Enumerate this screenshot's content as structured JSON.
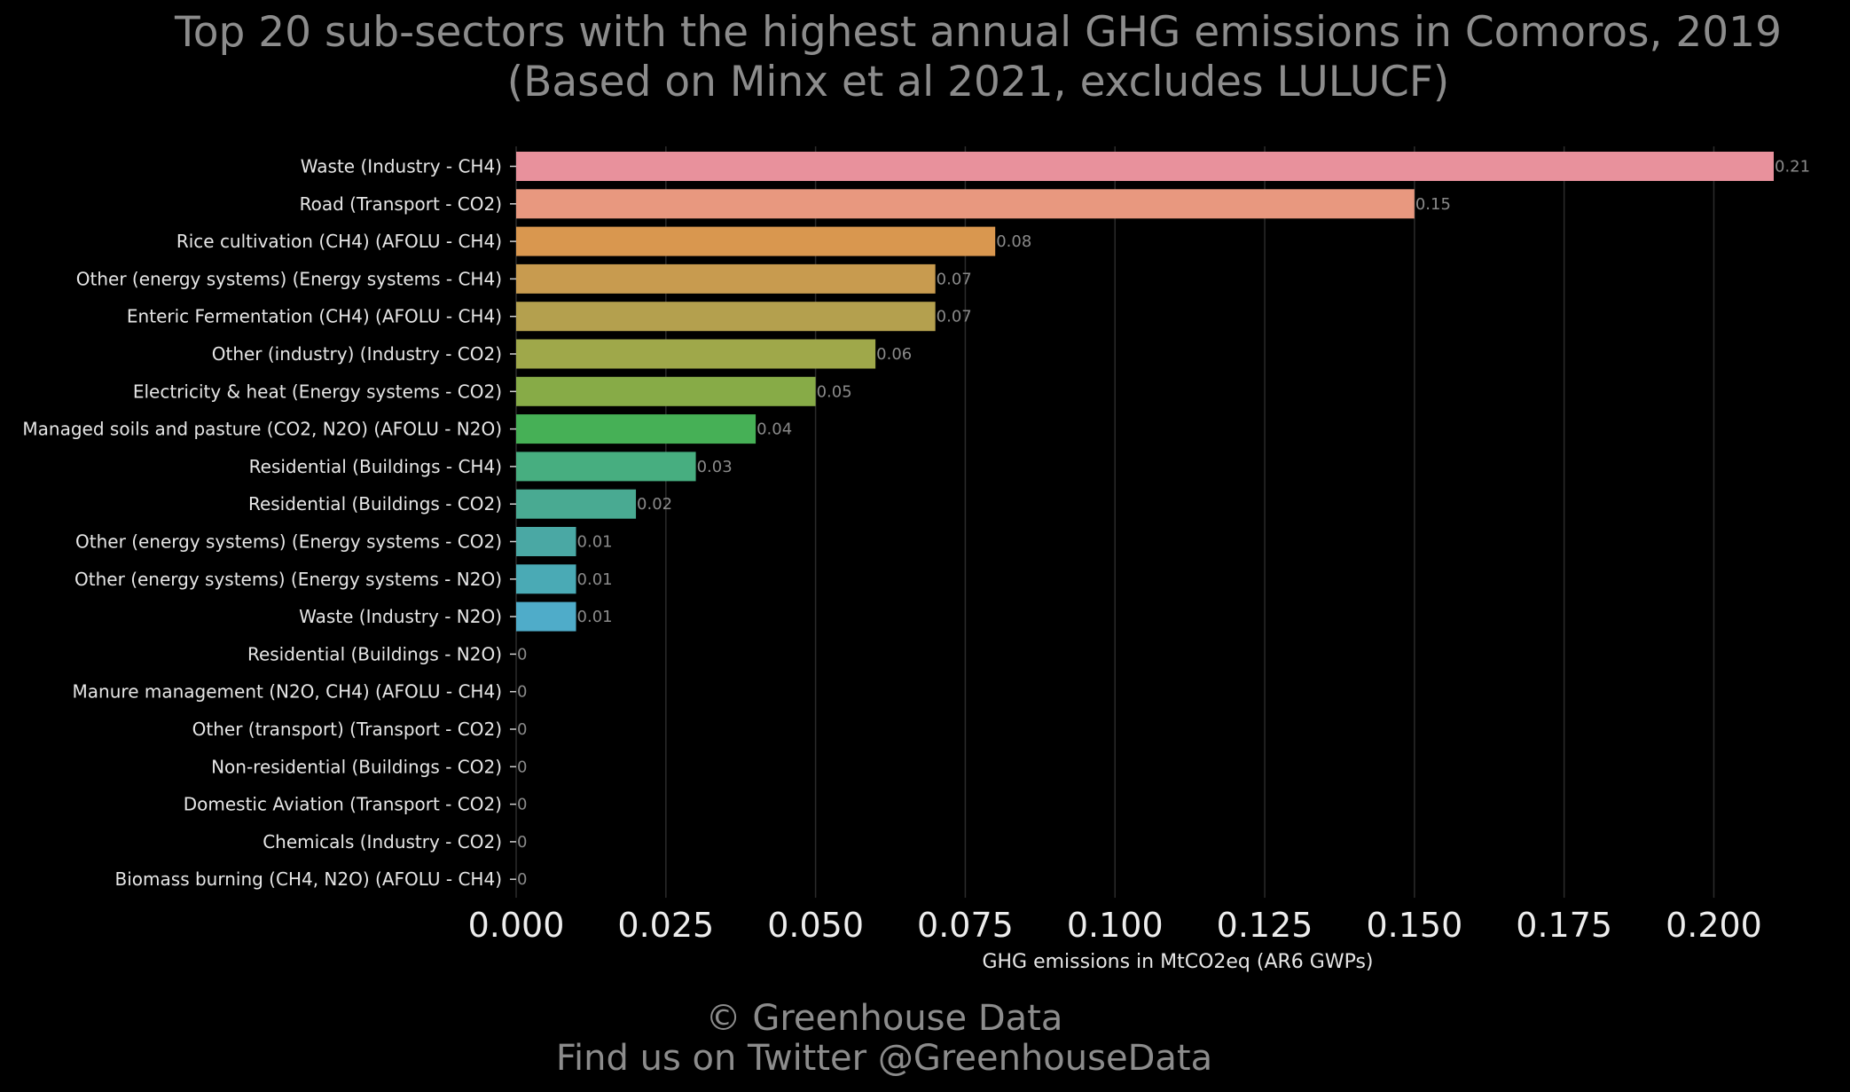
{
  "footer": {
    "copyright": "© Greenhouse Data",
    "twitter": "Find us on Twitter @GreenhouseData"
  },
  "chart_data": {
    "type": "bar",
    "orientation": "horizontal",
    "title": "Top 20 sub-sectors with the highest annual GHG emissions in Comoros, 2019",
    "subtitle": "(Based on Minx et al 2021, excludes LULUCF)",
    "xlabel": "GHG emissions in MtCO2eq (AR6 GWPs)",
    "ylabel": "",
    "xlim": [
      0,
      0.21
    ],
    "xticks": [
      "0.000",
      "0.025",
      "0.050",
      "0.075",
      "0.100",
      "0.125",
      "0.150",
      "0.175",
      "0.200"
    ],
    "xtick_values": [
      0,
      0.025,
      0.05,
      0.075,
      0.1,
      0.125,
      0.15,
      0.175,
      0.2
    ],
    "grid": "vertical",
    "categories": [
      "Waste (Industry - CH4)",
      "Road (Transport - CO2)",
      "Rice cultivation (CH4) (AFOLU - CH4)",
      "Other (energy systems) (Energy systems - CH4)",
      "Enteric Fermentation (CH4) (AFOLU - CH4)",
      "Other (industry) (Industry - CO2)",
      "Electricity & heat (Energy systems - CO2)",
      "Managed soils and pasture (CO2, N2O) (AFOLU - N2O)",
      "Residential (Buildings - CH4)",
      "Residential (Buildings - CO2)",
      "Other (energy systems) (Energy systems - CO2)",
      "Other (energy systems) (Energy systems - N2O)",
      "Waste (Industry - N2O)",
      "Residential (Buildings - N2O)",
      "Manure management (N2O, CH4) (AFOLU - CH4)",
      "Other (transport) (Transport - CO2)",
      "Non-residential (Buildings - CO2)",
      "Domestic Aviation (Transport - CO2)",
      "Chemicals (Industry - CO2)",
      "Biomass burning (CH4, N2O) (AFOLU - CH4)"
    ],
    "values": [
      0.21,
      0.15,
      0.08,
      0.07,
      0.07,
      0.06,
      0.05,
      0.04,
      0.03,
      0.02,
      0.01,
      0.01,
      0.01,
      0,
      0,
      0,
      0,
      0,
      0,
      0
    ],
    "value_labels": [
      "0.21",
      "0.15",
      "0.08",
      "0.07",
      "0.07",
      "0.06",
      "0.05",
      "0.04",
      "0.03",
      "0.02",
      "0.01",
      "0.01",
      "0.01",
      "0",
      "0",
      "0",
      "0",
      "0",
      "0",
      "0"
    ],
    "colors": [
      "#e8919c",
      "#e8987f",
      "#d9974f",
      "#c89b4f",
      "#b4a04e",
      "#9fa84a",
      "#87ab47",
      "#46b056",
      "#47ae80",
      "#49aa92",
      "#4aa8a4",
      "#4aaab5",
      "#4facc9",
      "#4facc9",
      "#4facc9",
      "#4facc9",
      "#4facc9",
      "#4facc9",
      "#4facc9",
      "#4facc9"
    ]
  }
}
